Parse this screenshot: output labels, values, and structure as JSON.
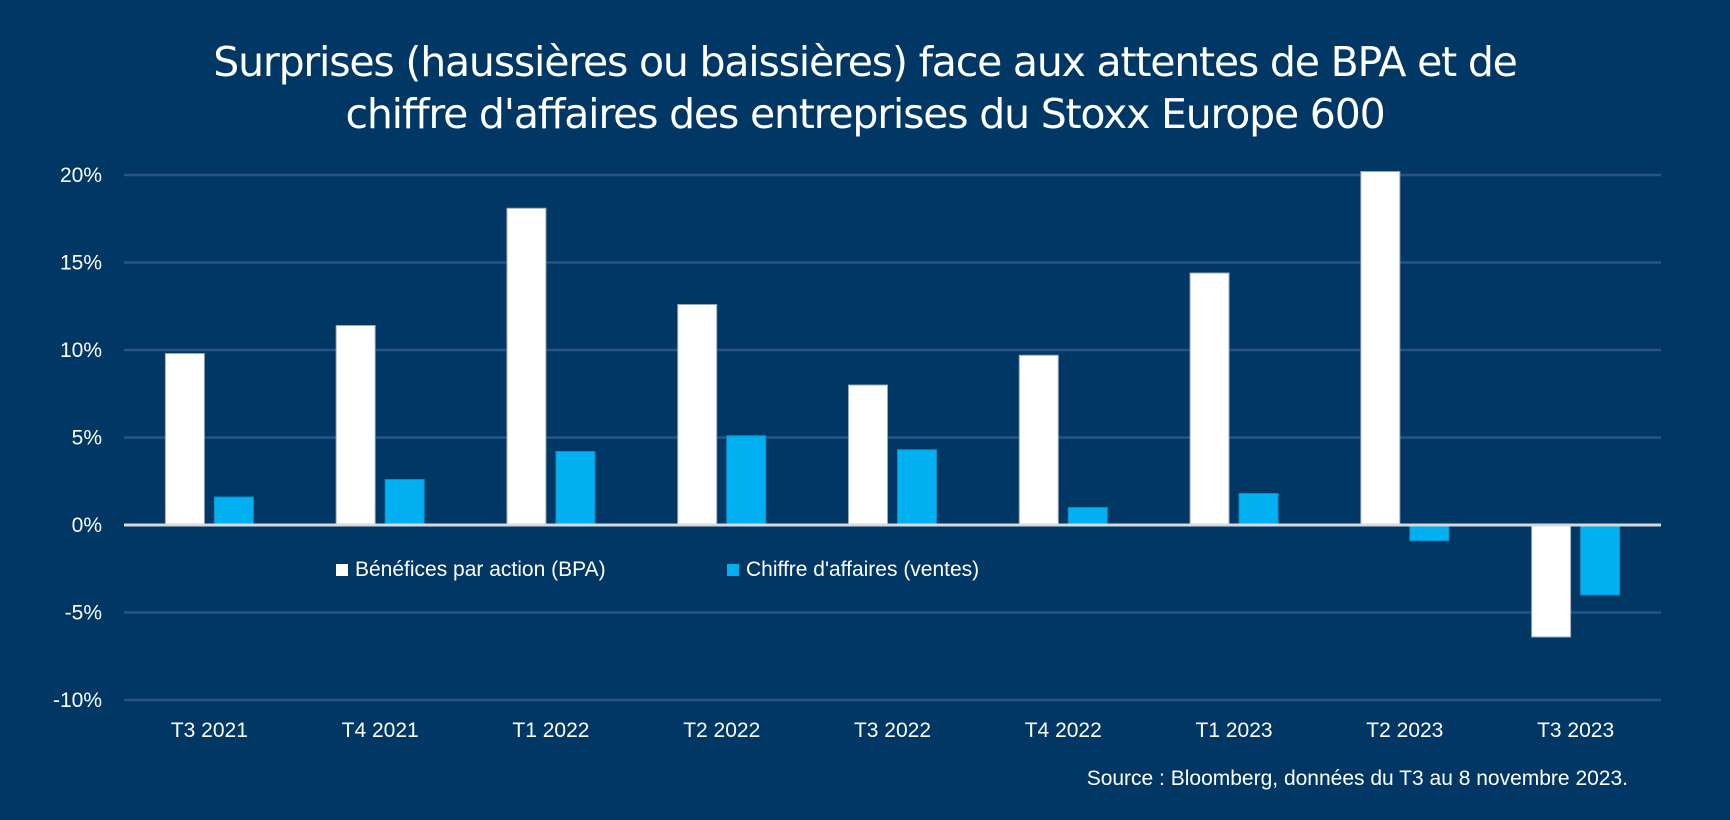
{
  "chart_data": {
    "type": "bar",
    "title_lines": [
      "Surprises (haussières ou baissières) face aux attentes de BPA et de",
      "chiffre d'affaires des entreprises du Stoxx Europe 600"
    ],
    "xlabel": "",
    "ylabel": "",
    "categories": [
      "T3 2021",
      "T4 2021",
      "T1 2022",
      "T2 2022",
      "T3 2022",
      "T4 2022",
      "T1 2023",
      "T2 2023",
      "T3 2023"
    ],
    "series": [
      {
        "name": "Bénéfices par action (BPA)",
        "color": "#ffffff",
        "values": [
          9.8,
          11.4,
          18.1,
          12.6,
          8.0,
          9.7,
          14.4,
          20.2,
          -6.4
        ]
      },
      {
        "name": "Chiffre d'affaires (ventes)",
        "color": "#00b0f0",
        "values": [
          1.6,
          2.6,
          4.2,
          5.1,
          4.3,
          1.0,
          1.8,
          -0.9,
          -4.0
        ]
      }
    ],
    "ylim": [
      -10,
      20
    ],
    "yticks": [
      20,
      15,
      10,
      5,
      0,
      -5,
      -10
    ],
    "ytick_labels": [
      "20%",
      "15%",
      "10%",
      "5%",
      "0%",
      "-5%",
      "-10%"
    ],
    "value_unit": "%",
    "grid": true,
    "legend_position": "inside-lower-left",
    "source": "Source : Bloomberg, données du T3 au 8 novembre 2023."
  },
  "colors": {
    "background": "#003764",
    "gridline": "#2a5580",
    "zero_line": "#d9d9d9",
    "series_1": "#ffffff",
    "series_2": "#00b0f0"
  }
}
